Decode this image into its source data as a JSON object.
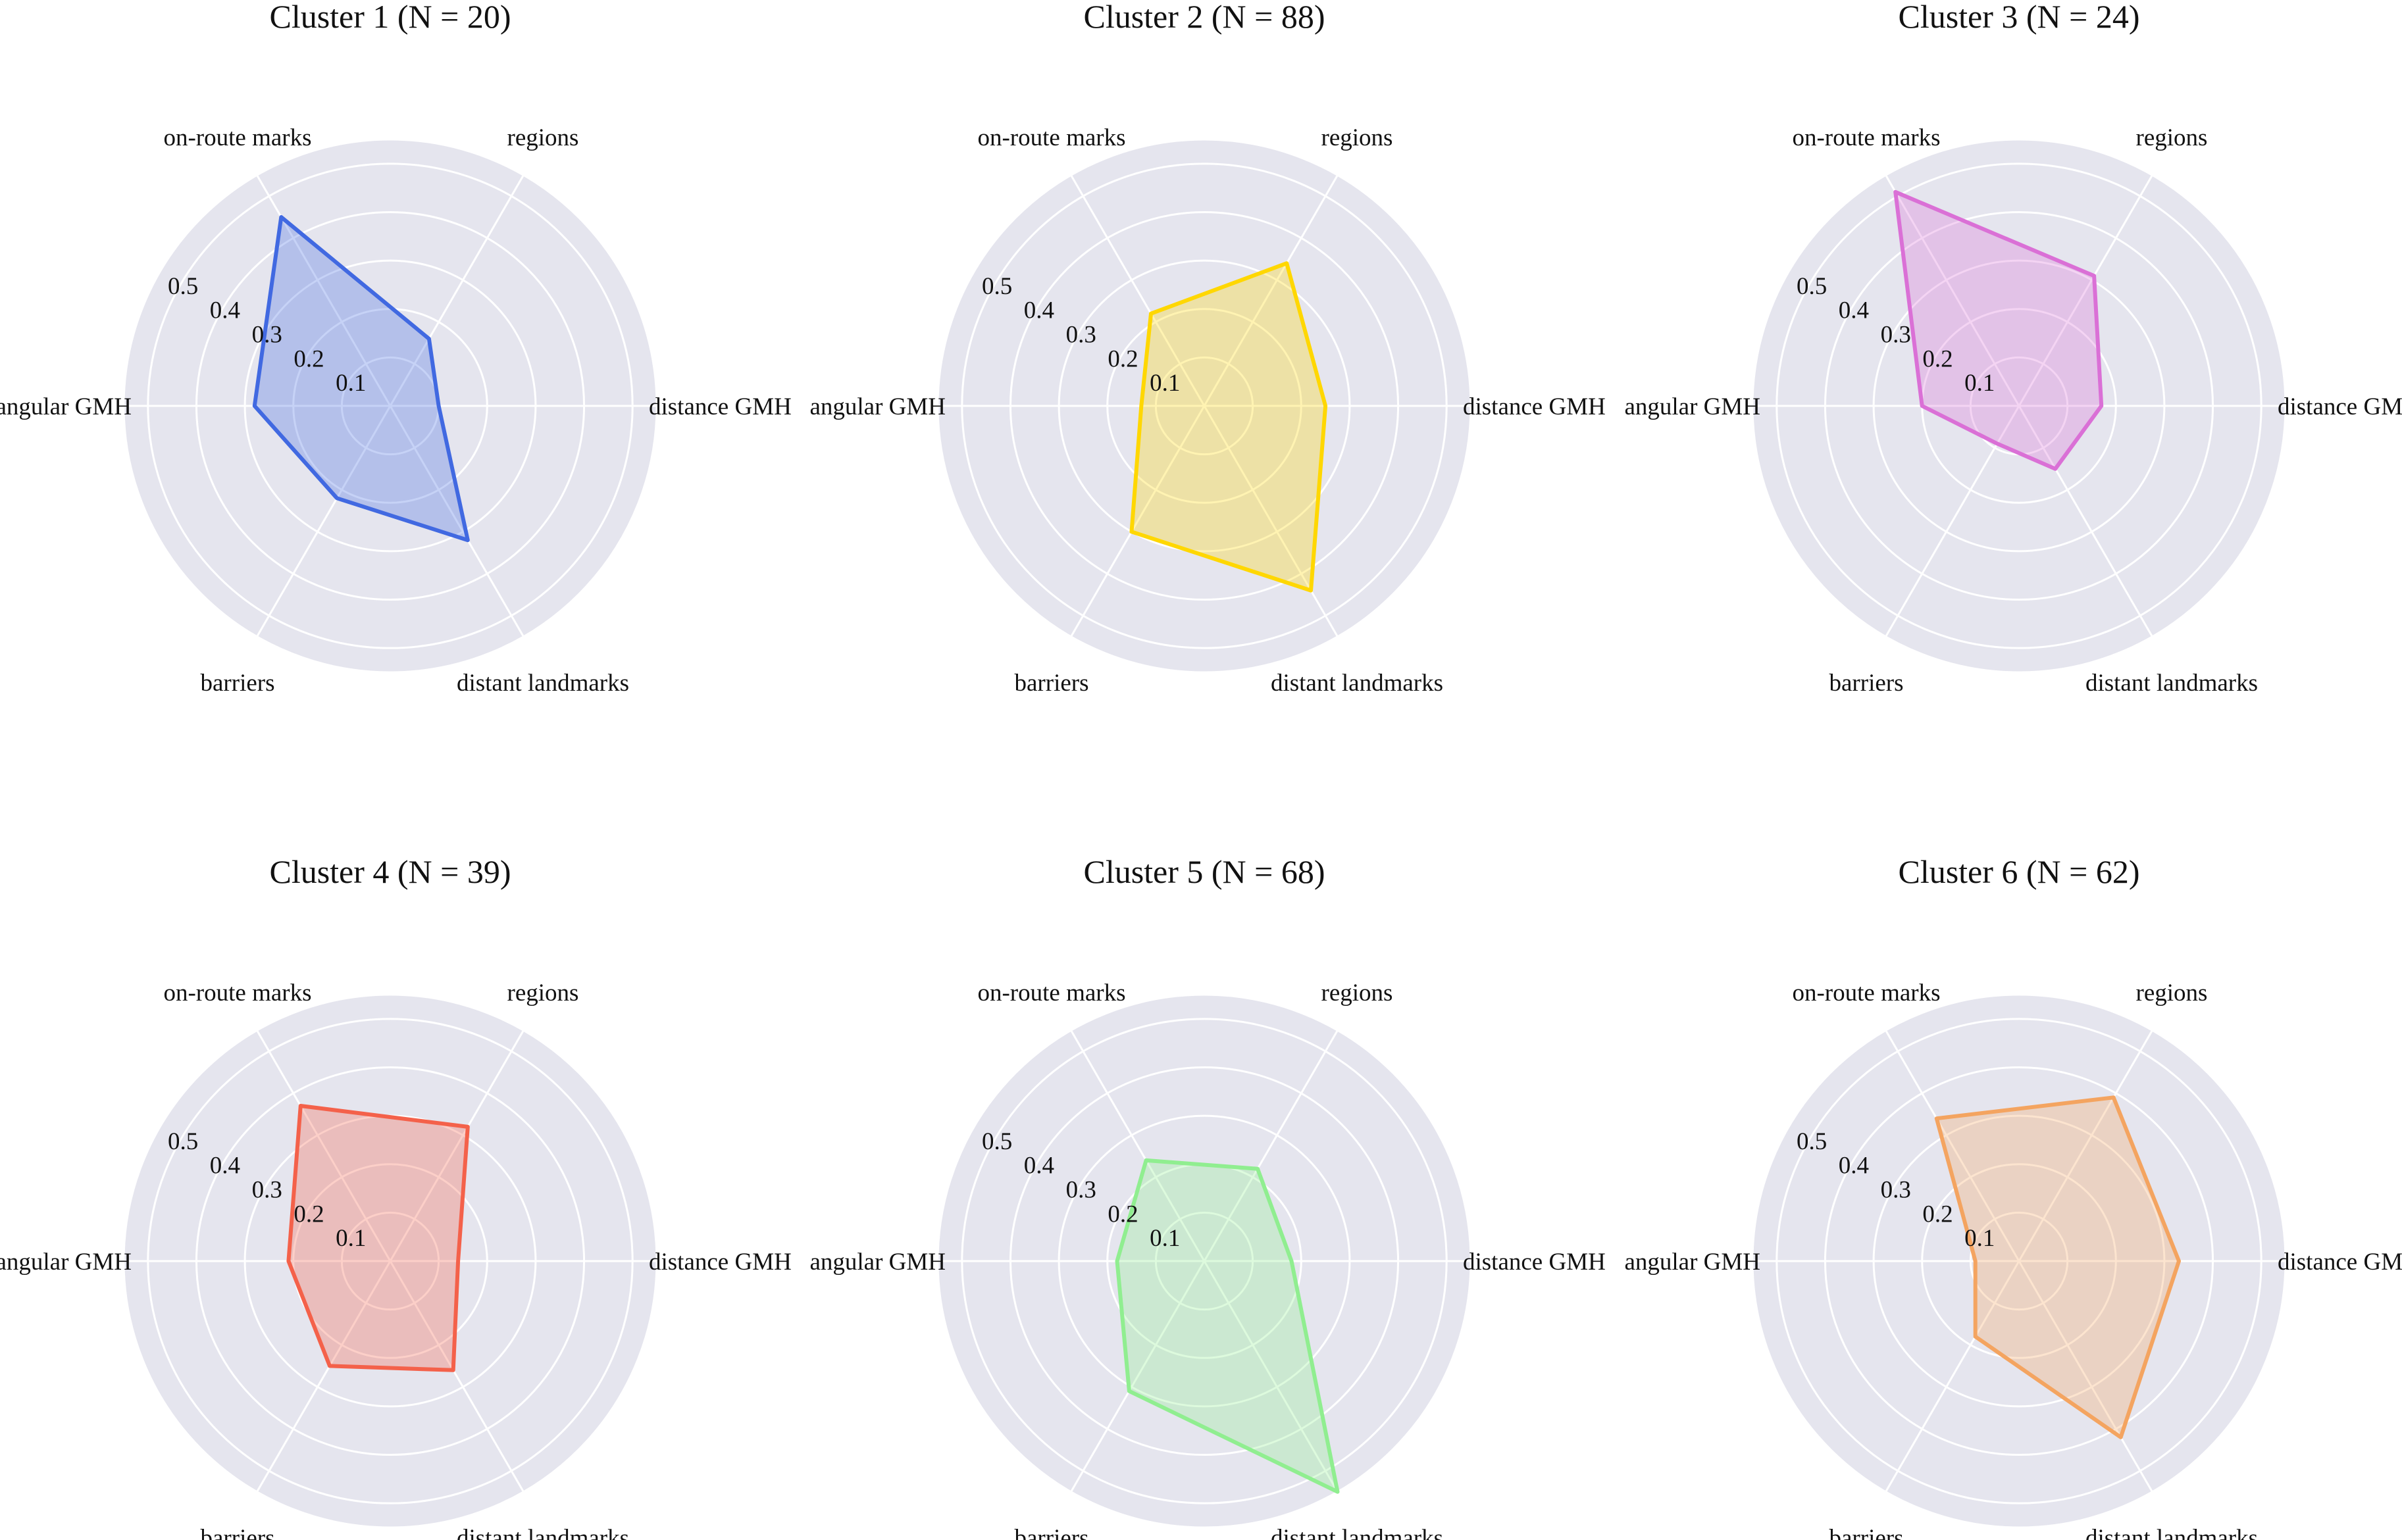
{
  "chart_data": [
    {
      "type": "radar",
      "title": "Cluster 1 (N = 20)",
      "axes": [
        "distance GMH",
        "regions",
        "on-route marks",
        "angular GMH",
        "barriers",
        "distant landmarks"
      ],
      "radial_ticks": [
        "0.1",
        "0.2",
        "0.3",
        "0.4",
        "0.5"
      ],
      "radial_range": [
        0,
        0.55
      ],
      "grid": true,
      "series": [
        {
          "color": "#4169E1",
          "values": [
            0.1,
            0.16,
            0.45,
            0.28,
            0.22,
            0.32
          ]
        }
      ]
    },
    {
      "type": "radar",
      "title": "Cluster 2 (N = 88)",
      "axes": [
        "distance GMH",
        "regions",
        "on-route marks",
        "angular GMH",
        "barriers",
        "distant landmarks"
      ],
      "radial_ticks": [
        "0.1",
        "0.2",
        "0.3",
        "0.4",
        "0.5"
      ],
      "radial_range": [
        0,
        0.55
      ],
      "grid": true,
      "series": [
        {
          "color": "#FFD700",
          "values": [
            0.25,
            0.34,
            0.22,
            0.13,
            0.3,
            0.44
          ]
        }
      ]
    },
    {
      "type": "radar",
      "title": "Cluster 3 (N = 24)",
      "axes": [
        "distance GMH",
        "regions",
        "on-route marks",
        "angular GMH",
        "barriers",
        "distant landmarks"
      ],
      "radial_ticks": [
        "0.1",
        "0.2",
        "0.3",
        "0.4",
        "0.5"
      ],
      "radial_range": [
        0,
        0.55
      ],
      "grid": true,
      "series": [
        {
          "color": "#DA70D6",
          "values": [
            0.17,
            0.31,
            0.51,
            0.2,
            0.09,
            0.15
          ]
        }
      ]
    },
    {
      "type": "radar",
      "title": "Cluster 4 (N = 39)",
      "axes": [
        "distance GMH",
        "regions",
        "on-route marks",
        "angular GMH",
        "barriers",
        "distant landmarks"
      ],
      "radial_ticks": [
        "0.1",
        "0.2",
        "0.3",
        "0.4",
        "0.5"
      ],
      "radial_range": [
        0,
        0.55
      ],
      "grid": true,
      "series": [
        {
          "color": "#F4614A",
          "values": [
            0.14,
            0.32,
            0.37,
            0.21,
            0.25,
            0.26
          ]
        }
      ]
    },
    {
      "type": "radar",
      "title": "Cluster 5 (N = 68)",
      "axes": [
        "distance GMH",
        "regions",
        "on-route marks",
        "angular GMH",
        "barriers",
        "distant landmarks"
      ],
      "radial_ticks": [
        "0.1",
        "0.2",
        "0.3",
        "0.4",
        "0.5"
      ],
      "radial_range": [
        0,
        0.55
      ],
      "grid": true,
      "series": [
        {
          "color": "#90EE90",
          "values": [
            0.18,
            0.22,
            0.24,
            0.18,
            0.31,
            0.55
          ]
        }
      ]
    },
    {
      "type": "radar",
      "title": "Cluster 6 (N = 62)",
      "axes": [
        "distance GMH",
        "regions",
        "on-route marks",
        "angular GMH",
        "barriers",
        "distant landmarks"
      ],
      "radial_ticks": [
        "0.1",
        "0.2",
        "0.3",
        "0.4",
        "0.5"
      ],
      "radial_range": [
        0,
        0.55
      ],
      "grid": true,
      "series": [
        {
          "color": "#F4A460",
          "values": [
            0.33,
            0.39,
            0.34,
            0.09,
            0.18,
            0.42
          ]
        }
      ]
    }
  ]
}
